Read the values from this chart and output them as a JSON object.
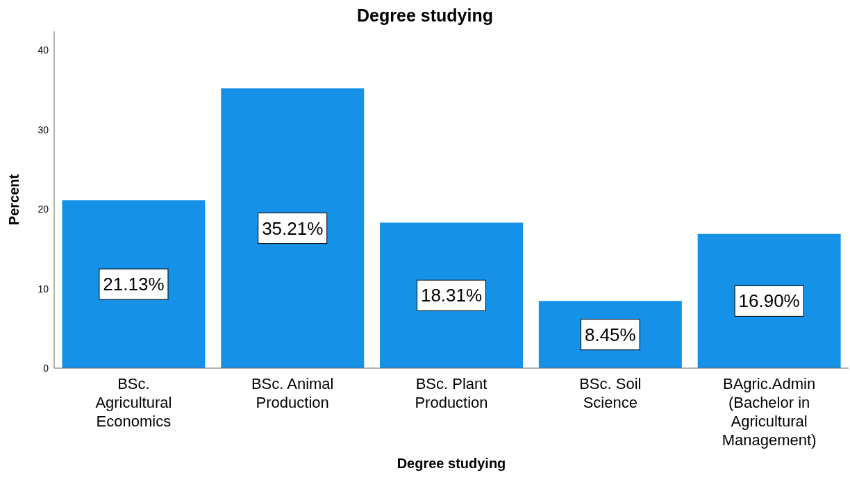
{
  "chart_data": {
    "type": "bar",
    "title": "Degree studying",
    "xlabel": "Degree studying",
    "ylabel": "Percent",
    "categories": [
      "BSc. Agricultural Economics",
      "BSc. Animal Production",
      "BSc. Plant Production",
      "BSc. Soil Science",
      "BAgric.Admin (Bachelor in Agricultural Management)"
    ],
    "values": [
      21.13,
      35.21,
      18.31,
      8.45,
      16.9
    ],
    "value_labels": [
      "21.13%",
      "35.21%",
      "18.31%",
      "8.45%",
      "16.90%"
    ],
    "color": "#1591e8",
    "ylim": [
      0,
      42.4
    ],
    "yticks": [
      0,
      10,
      20,
      30,
      40
    ],
    "grid": false
  }
}
